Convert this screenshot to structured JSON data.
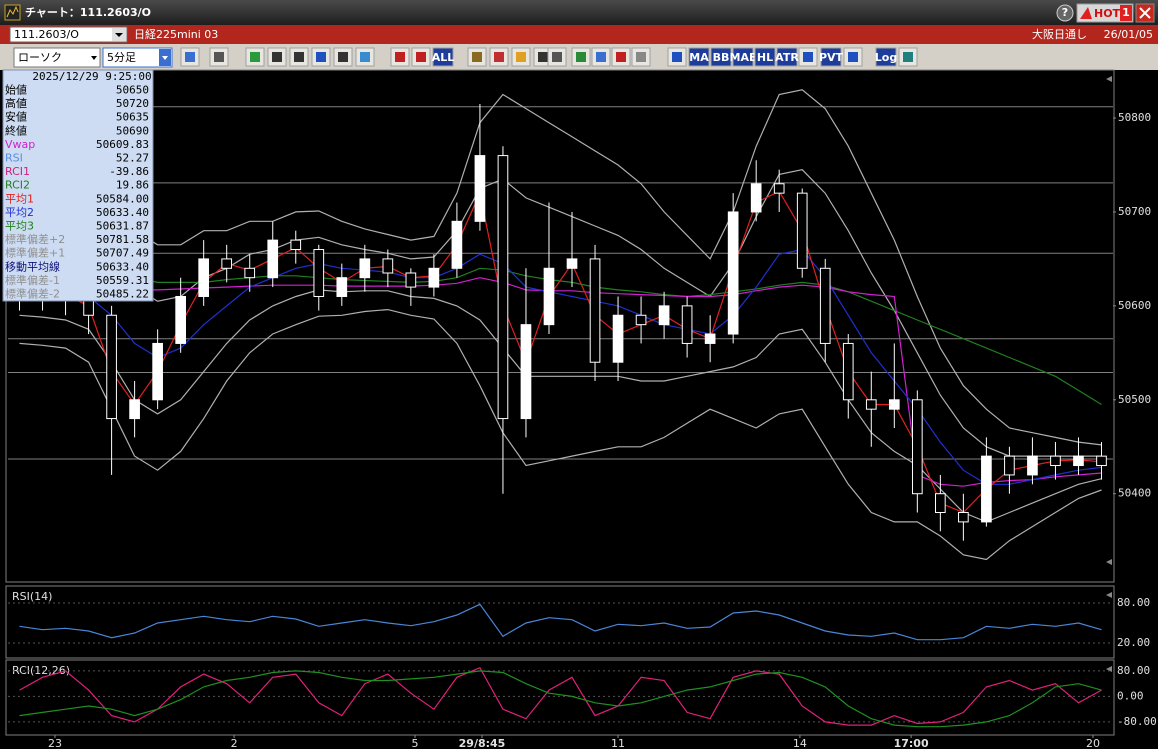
{
  "window": {
    "title": "チャート：111.2603/O",
    "help": "?",
    "hot": "HOT",
    "hot_number": "1"
  },
  "symbol_bar": {
    "symbol": "111.2603/O",
    "product": "日経225mini 03",
    "session": "大阪日通し",
    "date": "26/01/05"
  },
  "toolbar": {
    "chart_style": "ローソク",
    "interval": "5分足",
    "text_buttons": [
      "ALL",
      "MA",
      "BB",
      "MAE",
      "HL",
      "ATR",
      "PVT",
      "Log"
    ]
  },
  "info_panel": {
    "datetime": "2025/12/29 9:25:00",
    "rows": [
      {
        "label": "始値",
        "value": "50650",
        "color": "#000000"
      },
      {
        "label": "高値",
        "value": "50720",
        "color": "#000000"
      },
      {
        "label": "安値",
        "value": "50635",
        "color": "#000000"
      },
      {
        "label": "終値",
        "value": "50690",
        "color": "#000000"
      },
      {
        "label": "Vwap",
        "value": "50609.83",
        "color": "#d020d0"
      },
      {
        "label": "RSI",
        "value": "52.27",
        "color": "#5a8ee0"
      },
      {
        "label": "RCI1",
        "value": "-39.86",
        "color": "#d0207a"
      },
      {
        "label": "RCI2",
        "value": "19.86",
        "color": "#208020"
      },
      {
        "label": "平均1",
        "value": "50584.00",
        "color": "#e02020"
      },
      {
        "label": "平均2",
        "value": "50633.40",
        "color": "#2030d0"
      },
      {
        "label": "平均3",
        "value": "50631.87",
        "color": "#208020"
      },
      {
        "label": "標準偏差+2",
        "value": "50781.58",
        "color": "#909090"
      },
      {
        "label": "標準偏差+1",
        "value": "50707.49",
        "color": "#909090"
      },
      {
        "label": "移動平均線",
        "value": "50633.40",
        "color": "#10107a"
      },
      {
        "label": "標準偏差-1",
        "value": "50559.31",
        "color": "#909090"
      },
      {
        "label": "標準偏差-2",
        "value": "50485.22",
        "color": "#909090"
      }
    ]
  },
  "chart_data": [
    {
      "type": "candlestick",
      "up_color": "#ffffff",
      "down_color": "#000000",
      "xlim": [
        0,
        48
      ],
      "ylim": [
        50306,
        50849
      ],
      "yticks": [
        50400,
        50500,
        50600,
        50700,
        50800
      ],
      "xticks": [
        {
          "value": 2.04,
          "label": "23"
        },
        {
          "value": 9.82,
          "label": "2"
        },
        {
          "value": 17.68,
          "label": "5"
        },
        {
          "value": 20.59,
          "label": "29/8:45"
        },
        {
          "value": 26.5,
          "label": "11"
        },
        {
          "value": 34.4,
          "label": "14"
        },
        {
          "value": 39.23,
          "label": "17:00"
        },
        {
          "value": 47.13,
          "label": "20"
        }
      ],
      "levels": [
        50812,
        50731,
        50656,
        50565,
        50529,
        50437
      ],
      "level_color": "#808080",
      "open": [
        50610,
        50620,
        50615,
        50610,
        50590,
        50480,
        50500,
        50560,
        50610,
        50650,
        50640,
        50630,
        50670,
        50660,
        50610,
        50630,
        50650,
        50635,
        50620,
        50640,
        50690,
        50760,
        50480,
        50580,
        50640,
        50650,
        50540,
        50590,
        50580,
        50600,
        50560,
        50570,
        50700,
        50730,
        50720,
        50640,
        50560,
        50500,
        50490,
        50500,
        50400,
        50380,
        50370,
        50440,
        50420,
        50440,
        50430,
        50440
      ],
      "high": [
        50640,
        50635,
        50630,
        50625,
        50600,
        50520,
        50575,
        50630,
        50670,
        50665,
        50655,
        50690,
        50680,
        50665,
        50645,
        50665,
        50660,
        50640,
        50655,
        50710,
        50815,
        50770,
        50640,
        50710,
        50700,
        50665,
        50610,
        50610,
        50615,
        50610,
        50590,
        50720,
        50755,
        50745,
        50725,
        50650,
        50570,
        50530,
        50560,
        50510,
        50420,
        50400,
        50460,
        50450,
        50460,
        50455,
        50460,
        50455
      ],
      "low": [
        50595,
        50595,
        50590,
        50570,
        50420,
        50460,
        50490,
        50550,
        50600,
        50625,
        50615,
        50620,
        50645,
        50595,
        50600,
        50615,
        50620,
        50600,
        50610,
        50630,
        50680,
        50400,
        50460,
        50570,
        50620,
        50520,
        50520,
        50560,
        50565,
        50545,
        50540,
        50560,
        50690,
        50700,
        50630,
        50540,
        50480,
        50450,
        50470,
        50380,
        50360,
        50350,
        50365,
        50400,
        50410,
        50415,
        50420,
        50415
      ],
      "close": [
        50620,
        50615,
        50610,
        50590,
        50480,
        50500,
        50560,
        50610,
        50650,
        50640,
        50630,
        50670,
        50660,
        50610,
        50630,
        50650,
        50635,
        50620,
        50640,
        50690,
        50760,
        50480,
        50580,
        50640,
        50650,
        50540,
        50590,
        50580,
        50600,
        50560,
        50570,
        50700,
        50730,
        50720,
        50640,
        50560,
        50500,
        50490,
        50500,
        50400,
        50380,
        50370,
        50440,
        50420,
        50440,
        50430,
        50440,
        50430
      ],
      "series": [
        {
          "color": "#b0b0b0",
          "values": [
            50680,
            50678,
            50675,
            50680,
            50690,
            50680,
            50665,
            50665,
            50680,
            50680,
            50690,
            50690,
            50700,
            50701,
            50690,
            50682,
            50676,
            50670,
            50674,
            50720,
            50795,
            50825,
            50810,
            50795,
            50780,
            50765,
            50750,
            50730,
            50700,
            50675,
            50650,
            50700,
            50770,
            50825,
            50830,
            50810,
            50770,
            50720,
            50670,
            50610,
            50555,
            50515,
            50490,
            50470,
            50465,
            50460,
            50455,
            50452
          ]
        },
        {
          "color": "#b0b0b0",
          "values": [
            50650,
            50648,
            50645,
            50645,
            50640,
            50620,
            50605,
            50610,
            50630,
            50640,
            50655,
            50660,
            50670,
            50673,
            50665,
            50660,
            50656,
            50650,
            50652,
            50680,
            50725,
            50735,
            50715,
            50705,
            50695,
            50685,
            50675,
            50660,
            50640,
            50625,
            50610,
            50645,
            50695,
            50740,
            50745,
            50720,
            50680,
            50635,
            50595,
            50550,
            50505,
            50470,
            50450,
            50440,
            50440,
            50440,
            50440,
            50440
          ]
        },
        {
          "color": "#b0b0b0",
          "values": [
            50590,
            50588,
            50585,
            50575,
            50540,
            50500,
            50485,
            50500,
            50530,
            50560,
            50585,
            50600,
            50610,
            50617,
            50615,
            50616,
            50616,
            50610,
            50608,
            50600,
            50585,
            50555,
            50525,
            50525,
            50525,
            50525,
            50525,
            50520,
            50520,
            50525,
            50530,
            50535,
            50545,
            50570,
            50575,
            50540,
            50500,
            50465,
            50445,
            50430,
            50405,
            50380,
            50370,
            50380,
            50390,
            50400,
            50410,
            50416
          ]
        },
        {
          "color": "#b0b0b0",
          "values": [
            50560,
            50558,
            50555,
            50540,
            50490,
            50440,
            50425,
            50445,
            50480,
            50520,
            50550,
            50570,
            50580,
            50589,
            50590,
            50594,
            50596,
            50590,
            50586,
            50560,
            50515,
            50465,
            50430,
            50435,
            50440,
            50445,
            50450,
            50450,
            50460,
            50475,
            50490,
            50480,
            50470,
            50485,
            50490,
            50450,
            50410,
            50380,
            50370,
            50370,
            50355,
            50335,
            50330,
            50350,
            50365,
            50380,
            50395,
            50404
          ]
        },
        {
          "color": "#208020",
          "values": [
            50650,
            50648,
            50645,
            50640,
            50635,
            50630,
            50625,
            50625,
            50625,
            50628,
            50630,
            50632,
            50632,
            50630,
            50628,
            50627,
            50626,
            50625,
            50626,
            50630,
            50640,
            50638,
            50632,
            50628,
            50625,
            50620,
            50617,
            50615,
            50612,
            50610,
            50612,
            50615,
            50618,
            50622,
            50625,
            50622,
            50615,
            50605,
            50595,
            50585,
            50575,
            50565,
            50555,
            50545,
            50535,
            50525,
            50510,
            50495
          ]
        },
        {
          "color": "#d020d0",
          "values": [
            50620,
            50620,
            50620,
            50619,
            50618,
            50617,
            50617,
            50618,
            50619,
            50620,
            50621,
            50622,
            50622,
            50622,
            50621,
            50621,
            50621,
            50621,
            50622,
            50624,
            50630,
            50625,
            50617,
            50616,
            50616,
            50614,
            50613,
            50612,
            50611,
            50610,
            50610,
            50612,
            50616,
            50620,
            50622,
            50620,
            50615,
            50612,
            50610,
            50420,
            50410,
            50408,
            50412,
            50414,
            50415,
            50418,
            50420,
            50422
          ]
        },
        {
          "color": "#2030d0",
          "values": [
            50620,
            50618,
            50615,
            50610,
            50590,
            50560,
            50545,
            50555,
            50580,
            50600,
            50620,
            50630,
            50640,
            50645,
            50640,
            50638,
            50636,
            50630,
            50630,
            50640,
            50655,
            50645,
            50620,
            50615,
            50610,
            50605,
            50600,
            50590,
            50580,
            50575,
            50570,
            50590,
            50620,
            50655,
            50660,
            50630,
            50590,
            50550,
            50520,
            50490,
            50455,
            50425,
            50410,
            50410,
            50415,
            50420,
            50425,
            50428
          ]
        },
        {
          "color": "#e02020",
          "values": [
            50615,
            50615,
            50612,
            50600,
            50530,
            50495,
            50530,
            50580,
            50625,
            50645,
            50638,
            50650,
            50662,
            50640,
            50625,
            50640,
            50642,
            50630,
            50632,
            50665,
            50720,
            50600,
            50540,
            50610,
            50645,
            50590,
            50570,
            50580,
            50590,
            50575,
            50565,
            50640,
            50710,
            50722,
            50680,
            50600,
            50530,
            50495,
            50495,
            50450,
            50390,
            50380,
            50405,
            50425,
            50430,
            50435,
            50436,
            50434
          ]
        }
      ]
    },
    {
      "type": "line",
      "title": "RSI(14)",
      "ylim": [
        -2.5,
        102.5
      ],
      "yticks": [
        {
          "value": 80,
          "label": "80.00"
        },
        {
          "value": 20,
          "label": "20.00"
        }
      ],
      "series": [
        {
          "color": "#4a86d8",
          "values": [
            45,
            40,
            42,
            38,
            28,
            35,
            50,
            55,
            60,
            55,
            52,
            60,
            56,
            45,
            50,
            55,
            50,
            46,
            52,
            62,
            78,
            30,
            50,
            58,
            55,
            38,
            48,
            46,
            50,
            42,
            44,
            65,
            68,
            62,
            50,
            38,
            32,
            30,
            35,
            25,
            25,
            28,
            45,
            42,
            48,
            45,
            50,
            40
          ]
        }
      ]
    },
    {
      "type": "line",
      "title": "RCI(12,26)",
      "ylim": [
        -121,
        108
      ],
      "yticks": [
        {
          "value": 80,
          "label": "80.00"
        },
        {
          "value": 0,
          "label": "0.00"
        },
        {
          "value": -80,
          "label": "-80.00"
        }
      ],
      "series": [
        {
          "color": "#e0207a",
          "values": [
            20,
            60,
            80,
            20,
            -60,
            -80,
            -40,
            30,
            70,
            40,
            -20,
            60,
            70,
            -20,
            -60,
            40,
            70,
            10,
            -40,
            60,
            90,
            -40,
            -70,
            20,
            60,
            -60,
            -30,
            60,
            50,
            -50,
            -70,
            60,
            80,
            70,
            -30,
            -80,
            -90,
            -90,
            -60,
            -85,
            -80,
            -50,
            30,
            50,
            20,
            40,
            -20,
            20
          ]
        },
        {
          "color": "#209020",
          "values": [
            -60,
            -50,
            -40,
            -30,
            -40,
            -60,
            -40,
            -10,
            30,
            50,
            60,
            75,
            80,
            75,
            60,
            50,
            50,
            55,
            60,
            70,
            80,
            75,
            40,
            10,
            0,
            -20,
            -30,
            -20,
            0,
            20,
            30,
            50,
            70,
            75,
            60,
            30,
            -30,
            -70,
            -90,
            -95,
            -95,
            -90,
            -80,
            -60,
            -20,
            30,
            40,
            20
          ]
        }
      ]
    }
  ]
}
